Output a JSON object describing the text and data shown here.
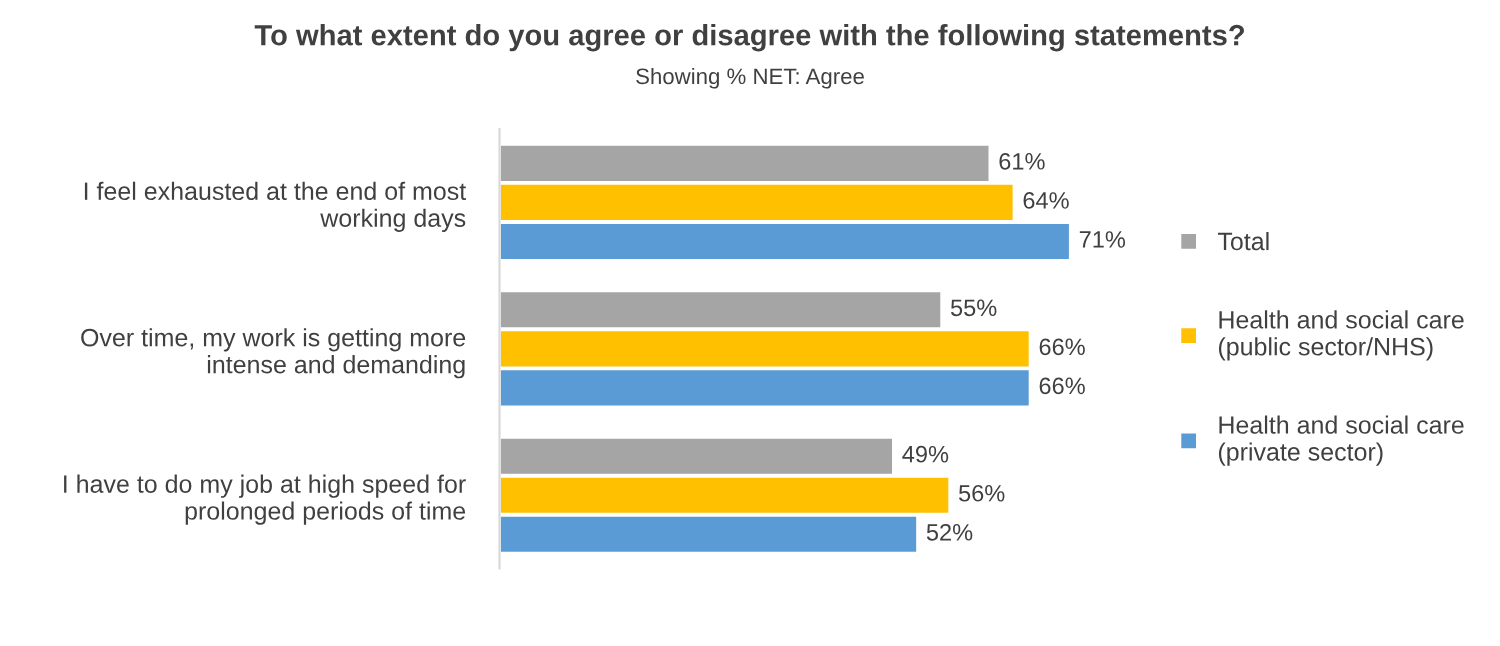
{
  "chart_data": {
    "type": "bar",
    "orientation": "horizontal",
    "title": "To what extent do you agree or disagree with the following statements?",
    "subtitle": "Showing % NET: Agree",
    "categories": [
      "I feel exhausted at the end of most\nworking days",
      "Over time, my work is getting more\nintense and demanding",
      "I have to do my job at high speed for\nprolonged periods of time"
    ],
    "series": [
      {
        "name": "Total",
        "color": "#a5a5a5",
        "values": [
          61,
          55,
          49
        ],
        "value_labels": [
          "61%",
          "55%",
          "49%"
        ]
      },
      {
        "name": "Health and social care\n(public sector/NHS)",
        "color": "#ffc000",
        "values": [
          64,
          66,
          56
        ],
        "value_labels": [
          "64%",
          "66%",
          "56%"
        ]
      },
      {
        "name": "Health and social care\n(private sector)",
        "color": "#5b9bd5",
        "values": [
          71,
          66,
          52
        ],
        "value_labels": [
          "71%",
          "66%",
          "52%"
        ]
      }
    ],
    "tick_labels": "y",
    "grid": false,
    "legend": "right"
  }
}
